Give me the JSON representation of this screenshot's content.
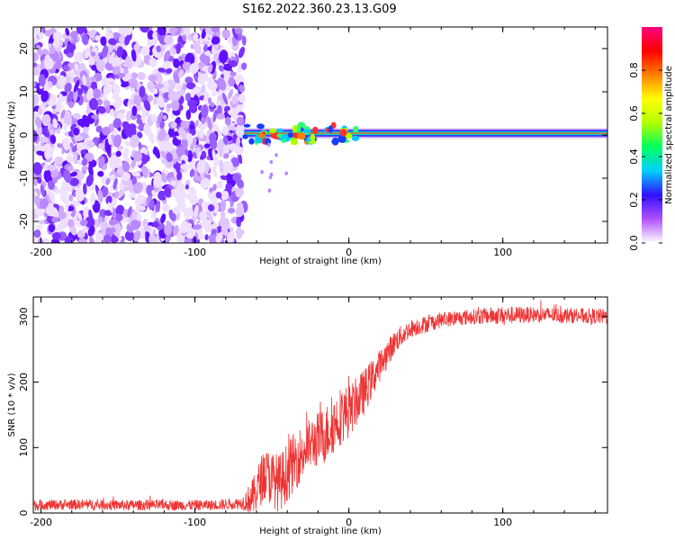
{
  "title": "S162.2022.360.23.13.G09",
  "chart_data": [
    {
      "type": "heatmap",
      "xlabel": "Height of straight line (km)",
      "ylabel": "Frequency (Hz)",
      "xlim": [
        -205,
        168
      ],
      "ylim": [
        -25,
        25
      ],
      "x_ticks": [
        -200,
        -100,
        0,
        100
      ],
      "y_ticks": [
        -20,
        -10,
        0,
        10,
        20
      ],
      "colorbar": {
        "label": "Normalized spectral amplitude",
        "range": [
          0,
          1
        ],
        "ticks": [
          "0.0",
          "0.2",
          "0.4",
          "0.6",
          "0.8"
        ],
        "tick_values": [
          0,
          0.2,
          0.4,
          0.6,
          0.8
        ],
        "colors": [
          "#ffffff",
          "#b050ff",
          "#3010ff",
          "#00d0ff",
          "#00ff60",
          "#b0ff00",
          "#ffff00",
          "#ff8000",
          "#ff0000",
          "#ff0080"
        ]
      },
      "noise_region_x": [
        -205,
        -68
      ],
      "signal": {
        "x_start": -68,
        "frequency_hz": 0.4,
        "stable_from_x": 5
      }
    },
    {
      "type": "line",
      "xlabel": "Height of straight line (km)",
      "ylabel": "SNR (10 * v/v)",
      "xlim": [
        -205,
        168
      ],
      "ylim": [
        0,
        330
      ],
      "x_ticks": [
        -200,
        -100,
        0,
        100
      ],
      "y_ticks": [
        0,
        100,
        200,
        300
      ],
      "color": "#ee3333",
      "x": [
        -205,
        -180,
        -150,
        -120,
        -90,
        -70,
        -62,
        -55,
        -45,
        -35,
        -25,
        -15,
        -5,
        0,
        10,
        20,
        30,
        40,
        60,
        80,
        100,
        120,
        140,
        168
      ],
      "y": [
        12,
        13,
        12,
        12,
        12,
        15,
        25,
        60,
        45,
        80,
        105,
        120,
        150,
        155,
        185,
        225,
        262,
        282,
        295,
        300,
        302,
        303,
        302,
        300
      ],
      "noise": [
        8,
        8,
        8,
        8,
        8,
        9,
        30,
        40,
        45,
        45,
        40,
        45,
        45,
        40,
        35,
        25,
        18,
        14,
        12,
        12,
        14,
        12,
        12,
        12
      ]
    }
  ]
}
